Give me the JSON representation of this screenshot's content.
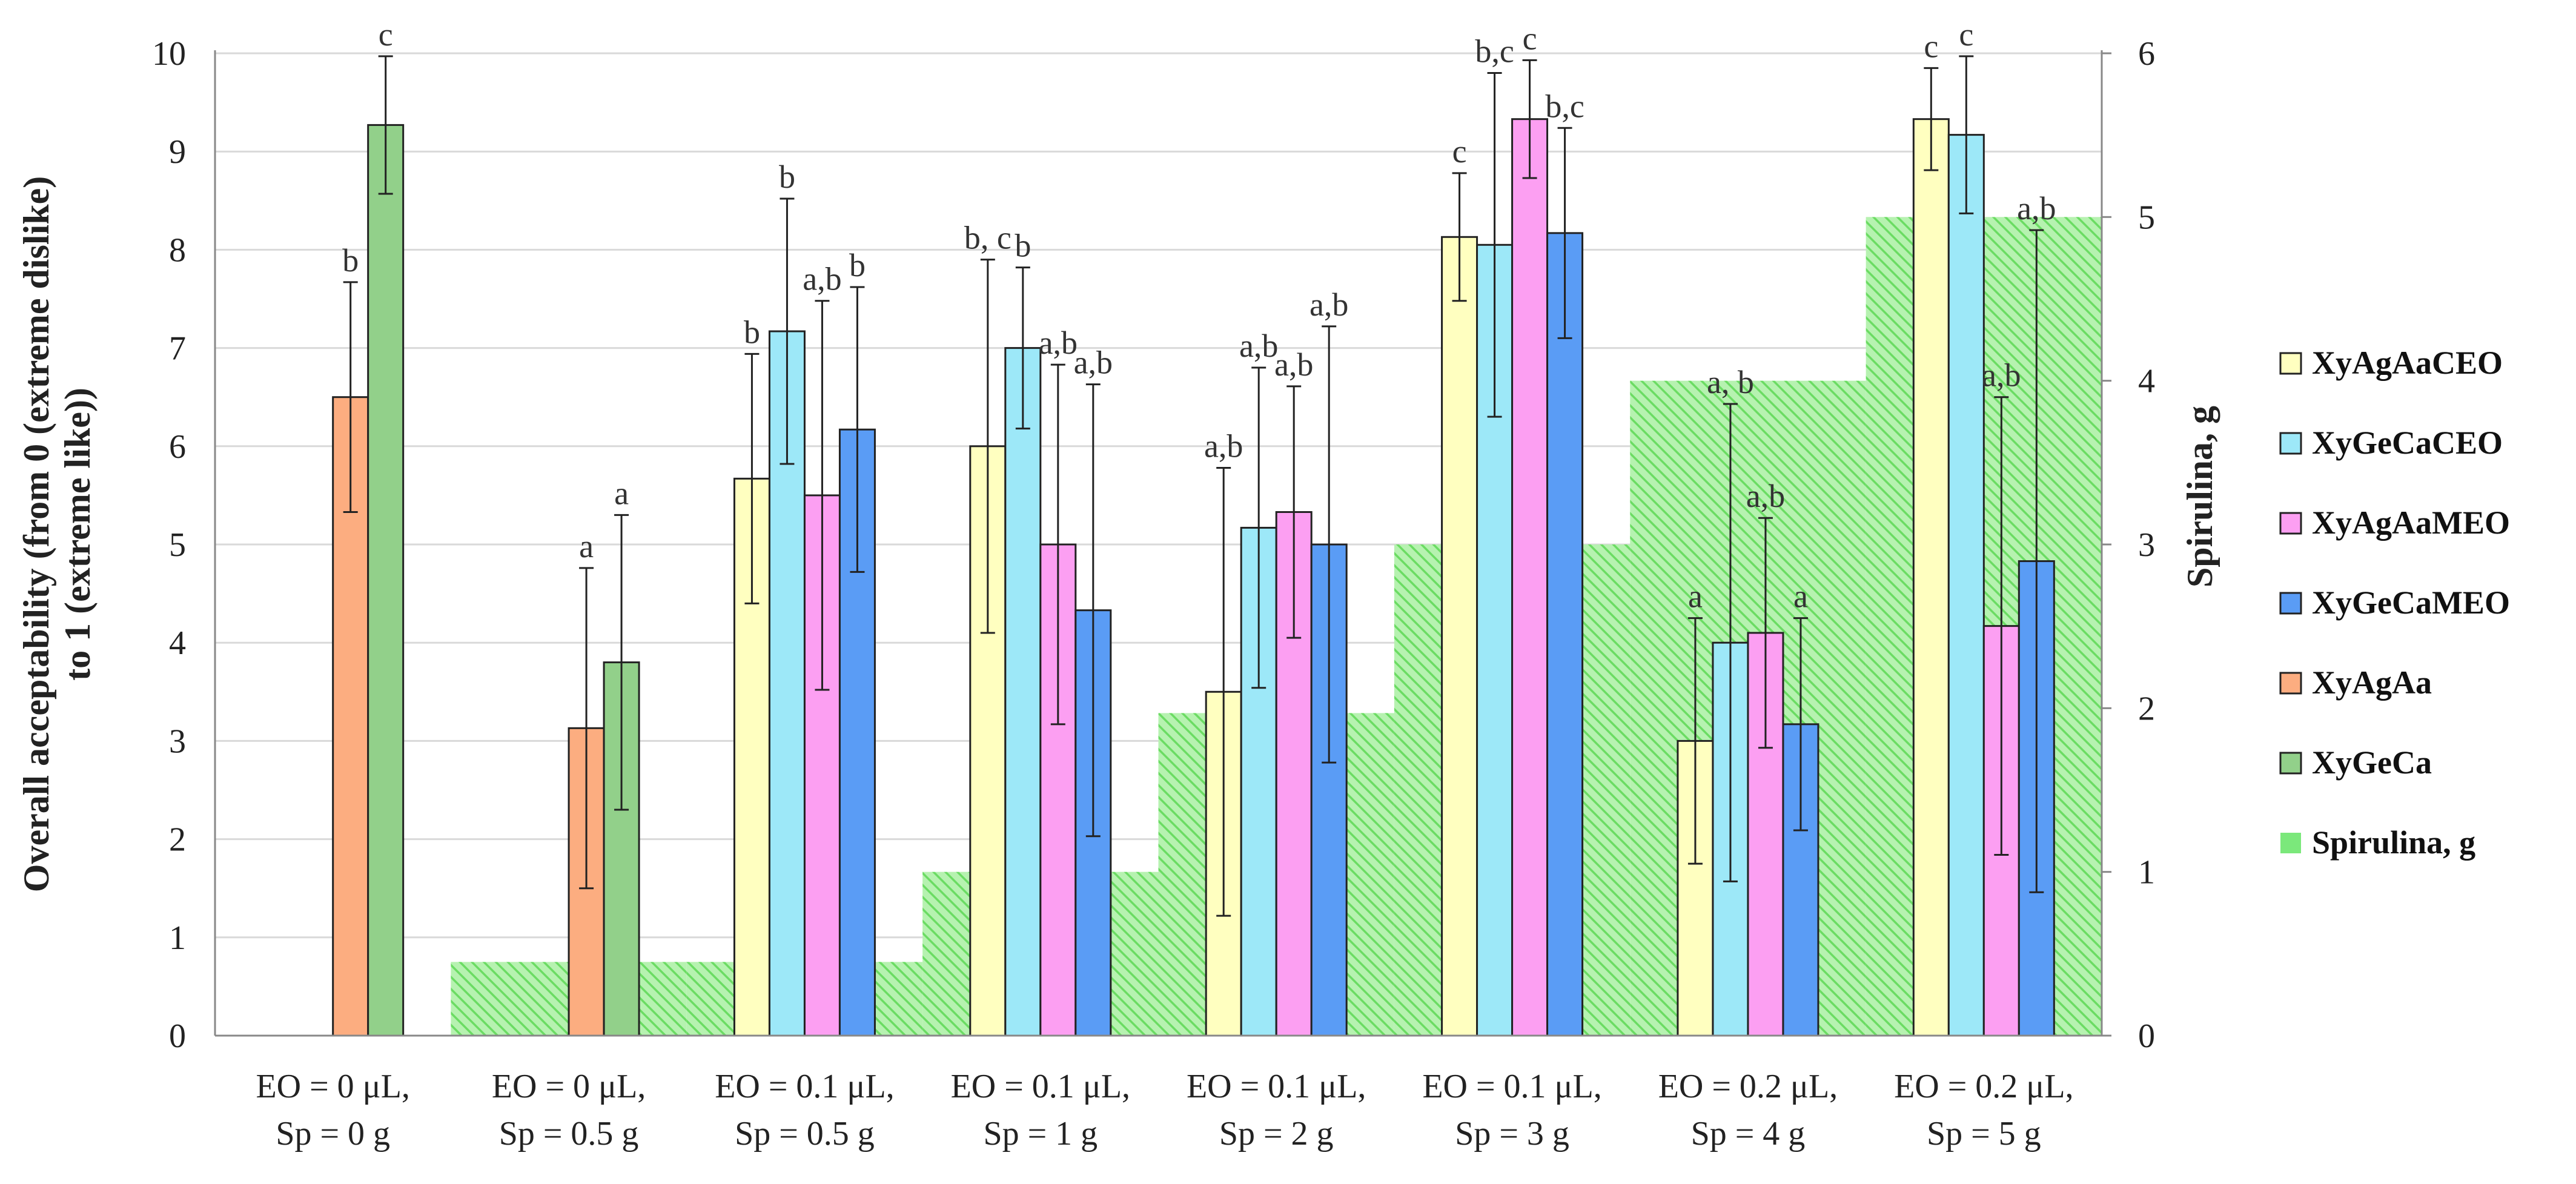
{
  "chart_data": {
    "type": "bar",
    "ylabel_left_line1": "Overall acceptability (from 0 (extreme dislike)",
    "ylabel_left_line2": "to 1 (extreme like))",
    "ylabel_right": "Spirulina, g",
    "ylim_left": [
      0,
      10
    ],
    "ylim_right": [
      0,
      6
    ],
    "yticks_left": [
      "0",
      "1",
      "2",
      "3",
      "4",
      "5",
      "6",
      "7",
      "8",
      "9",
      "10"
    ],
    "yticks_right": [
      "0",
      "1",
      "2",
      "3",
      "4",
      "5",
      "6"
    ],
    "categories": [
      {
        "line1": "EO = 0  μL,",
        "line2": "Sp = 0 g"
      },
      {
        "line1": "EO = 0 μL,",
        "line2": "Sp = 0.5 g"
      },
      {
        "line1": "EO = 0.1  μL,",
        "line2": "Sp = 0.5 g"
      },
      {
        "line1": "EO = 0.1 μL,",
        "line2": "Sp = 1 g"
      },
      {
        "line1": "EO = 0.1 μL,",
        "line2": "Sp = 2 g"
      },
      {
        "line1": "EO = 0.1 μL,",
        "line2": "Sp = 3 g"
      },
      {
        "line1": "EO = 0.2 μL,",
        "line2": "Sp = 4 g"
      },
      {
        "line1": "EO = 0.2 μL,",
        "line2": "Sp = 5 g"
      }
    ],
    "spirulina": {
      "name": "Spirulina, g",
      "color": "#7be87b",
      "values": [
        0,
        0.45,
        0.45,
        1.0,
        1.97,
        3.0,
        4.0,
        5.0
      ]
    },
    "series": [
      {
        "name": "XyAgAaCEO",
        "color": "#ffffc0",
        "values": [
          null,
          null,
          5.67,
          6.0,
          3.5,
          8.13,
          3.0,
          9.33
        ],
        "err": [
          null,
          null,
          1.27,
          1.9,
          2.28,
          0.65,
          1.25,
          0.52
        ],
        "labels": [
          null,
          null,
          "b",
          "b, c",
          "a,b",
          "c",
          "a",
          "c"
        ]
      },
      {
        "name": "XyGeCaCEO",
        "color": "#9de8f8",
        "values": [
          null,
          null,
          7.17,
          7.0,
          5.17,
          8.05,
          4.0,
          9.17
        ],
        "err": [
          null,
          null,
          1.35,
          0.82,
          1.63,
          1.75,
          2.43,
          0.8
        ],
        "labels": [
          null,
          null,
          "b",
          "b",
          "a,b",
          "b,c",
          "a, b",
          "c"
        ]
      },
      {
        "name": "XyAgAaMEO",
        "color": "#fc9ff2",
        "values": [
          null,
          null,
          5.5,
          5.0,
          5.33,
          9.33,
          4.1,
          4.17
        ],
        "err": [
          null,
          null,
          1.98,
          1.83,
          1.28,
          0.6,
          1.17,
          2.33
        ],
        "labels": [
          null,
          null,
          "a,b",
          "a,b",
          "a,b",
          "c",
          "a,b",
          "a,b"
        ]
      },
      {
        "name": "XyGeCaMEO",
        "color": "#5a9cf5",
        "values": [
          null,
          null,
          6.17,
          4.33,
          5.0,
          8.17,
          3.17,
          4.83
        ],
        "err": [
          null,
          null,
          1.45,
          2.3,
          2.22,
          1.07,
          1.08,
          3.37
        ],
        "labels": [
          null,
          null,
          "b",
          "a,b",
          "a,b",
          "b,c",
          "a",
          "a,b"
        ]
      },
      {
        "name": "XyAgAa",
        "color": "#fcad80",
        "values": [
          6.5,
          3.13,
          null,
          null,
          null,
          null,
          null,
          null
        ],
        "err": [
          1.17,
          1.63,
          null,
          null,
          null,
          null,
          null,
          null
        ],
        "labels": [
          "b",
          "a",
          null,
          null,
          null,
          null,
          null,
          null
        ]
      },
      {
        "name": "XyGeCa",
        "color": "#92d08a",
        "values": [
          9.27,
          3.8,
          null,
          null,
          null,
          null,
          null,
          null
        ],
        "err": [
          0.7,
          1.5,
          null,
          null,
          null,
          null,
          null,
          null
        ],
        "labels": [
          "c",
          "a",
          null,
          null,
          null,
          null,
          null,
          null
        ]
      }
    ],
    "legend": [
      "XyAgAaCEO",
      "XyGeCaCEO",
      "XyAgAaMEO",
      "XyGeCaMEO",
      "XyAgAa",
      "XyGeCa",
      "Spirulina, g"
    ],
    "legend_position": "right"
  }
}
